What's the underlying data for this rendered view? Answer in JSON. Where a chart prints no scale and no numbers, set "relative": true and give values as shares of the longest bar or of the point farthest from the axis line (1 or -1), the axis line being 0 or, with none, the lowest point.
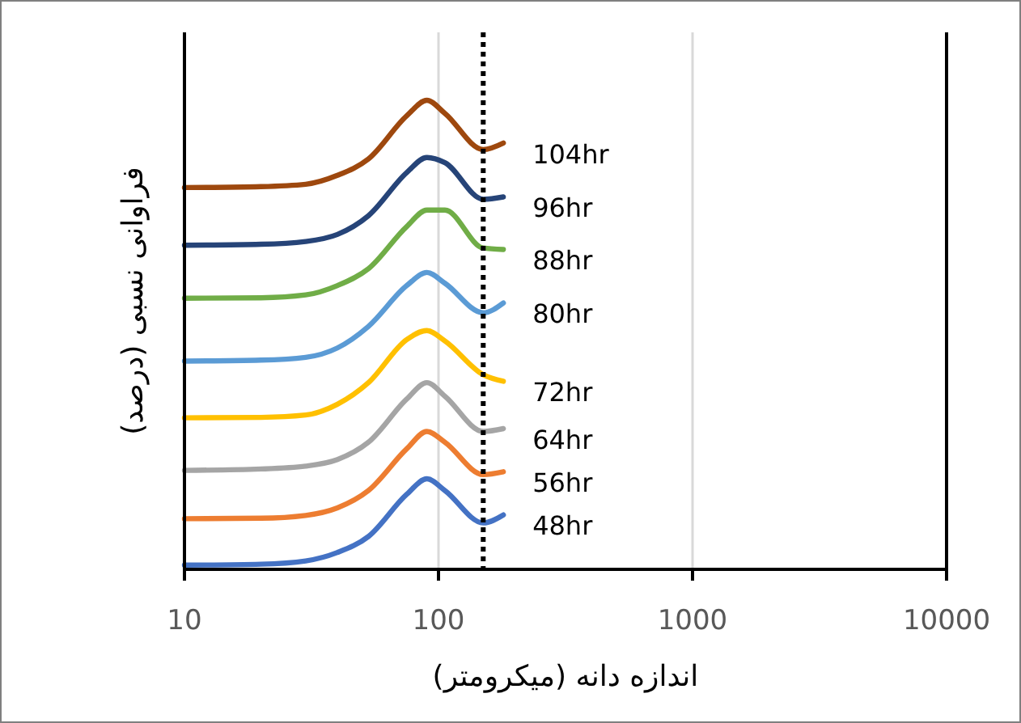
{
  "chart_data": {
    "type": "line",
    "relative": true,
    "xlabel": "اندازه دانه (میکرومتر)",
    "ylabel": "فراوانی نسبی (درصد)",
    "log": "x",
    "xlim": [
      10,
      10000
    ],
    "xticks": [
      10,
      100,
      1000,
      10000
    ],
    "grid": "x",
    "marker": "none",
    "line_style": "solid",
    "x": [
      10,
      20,
      30,
      40,
      53,
      75,
      90,
      106,
      150,
      180
    ],
    "series": [
      {
        "name": "48hr",
        "color": "#4472c4",
        "values": [
          0.009,
          0.011,
          0.018,
          0.036,
          0.07,
          0.16,
          0.193,
          0.168,
          0.099,
          0.116
        ]
      },
      {
        "name": "56hr",
        "color": "#ed7d31",
        "values": [
          0.108,
          0.109,
          0.115,
          0.131,
          0.168,
          0.257,
          0.294,
          0.271,
          0.202,
          0.208
        ]
      },
      {
        "name": "64hr",
        "color": "#a5a5a5",
        "values": [
          0.211,
          0.214,
          0.22,
          0.234,
          0.271,
          0.363,
          0.398,
          0.369,
          0.294,
          0.3
        ]
      },
      {
        "name": "72hr",
        "color": "#ffc000",
        "values": [
          0.323,
          0.324,
          0.329,
          0.352,
          0.398,
          0.49,
          0.509,
          0.487,
          0.415,
          0.401
        ]
      },
      {
        "name": "80hr",
        "color": "#5b9bd5",
        "values": [
          0.444,
          0.446,
          0.452,
          0.472,
          0.518,
          0.605,
          0.633,
          0.61,
          0.547,
          0.568
        ]
      },
      {
        "name": "88hr",
        "color": "#70ad47",
        "values": [
          0.578,
          0.579,
          0.585,
          0.605,
          0.641,
          0.731,
          0.766,
          0.766,
          0.685,
          0.682
        ]
      },
      {
        "name": "96hr",
        "color": "#264478",
        "values": [
          0.691,
          0.693,
          0.699,
          0.714,
          0.754,
          0.846,
          0.878,
          0.867,
          0.789,
          0.794
        ]
      },
      {
        "name": "104hr",
        "color": "#9e480e",
        "values": [
          0.814,
          0.816,
          0.821,
          0.84,
          0.875,
          0.967,
          1.0,
          0.972,
          0.895,
          0.909
        ]
      }
    ],
    "ref_lines": [
      {
        "axis": "x",
        "value": 150,
        "color": "#000000",
        "line_style": "dotted"
      }
    ]
  }
}
